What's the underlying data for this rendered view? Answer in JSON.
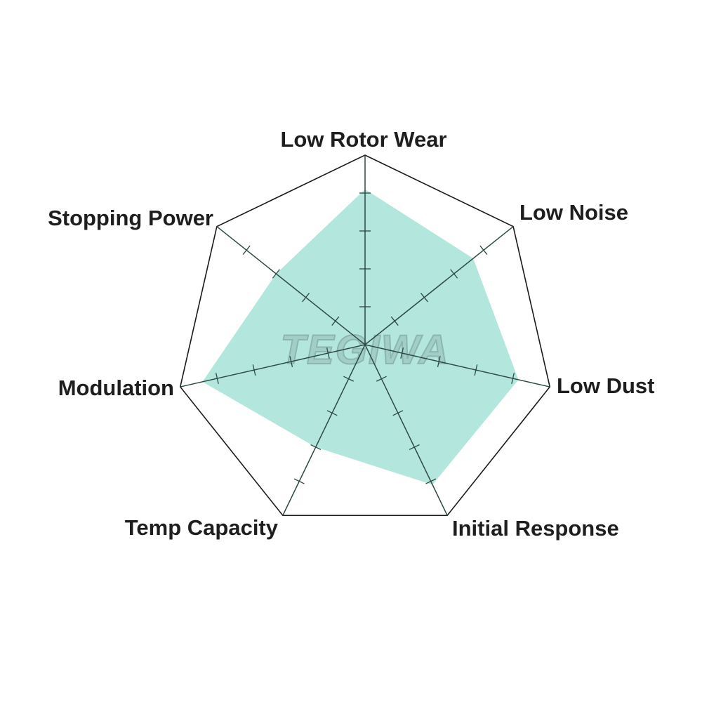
{
  "chart_data": {
    "type": "radar",
    "axes": [
      "Low Rotor Wear",
      "Low Noise",
      "Low Dust",
      "Initial Response",
      "Temp Capacity",
      "Modulation",
      "Stopping Power"
    ],
    "values": [
      8.2,
      7.3,
      8.3,
      8.2,
      6.0,
      8.8,
      6.0
    ],
    "range": [
      0,
      10
    ],
    "tick_interval": 2,
    "grid": "outer heptagon only",
    "legend": "none",
    "colors": {
      "fill": "#b3e6dc",
      "outline": "#1a1a1a",
      "axis": "#2d4a44"
    }
  },
  "watermark": "TEGIWA"
}
